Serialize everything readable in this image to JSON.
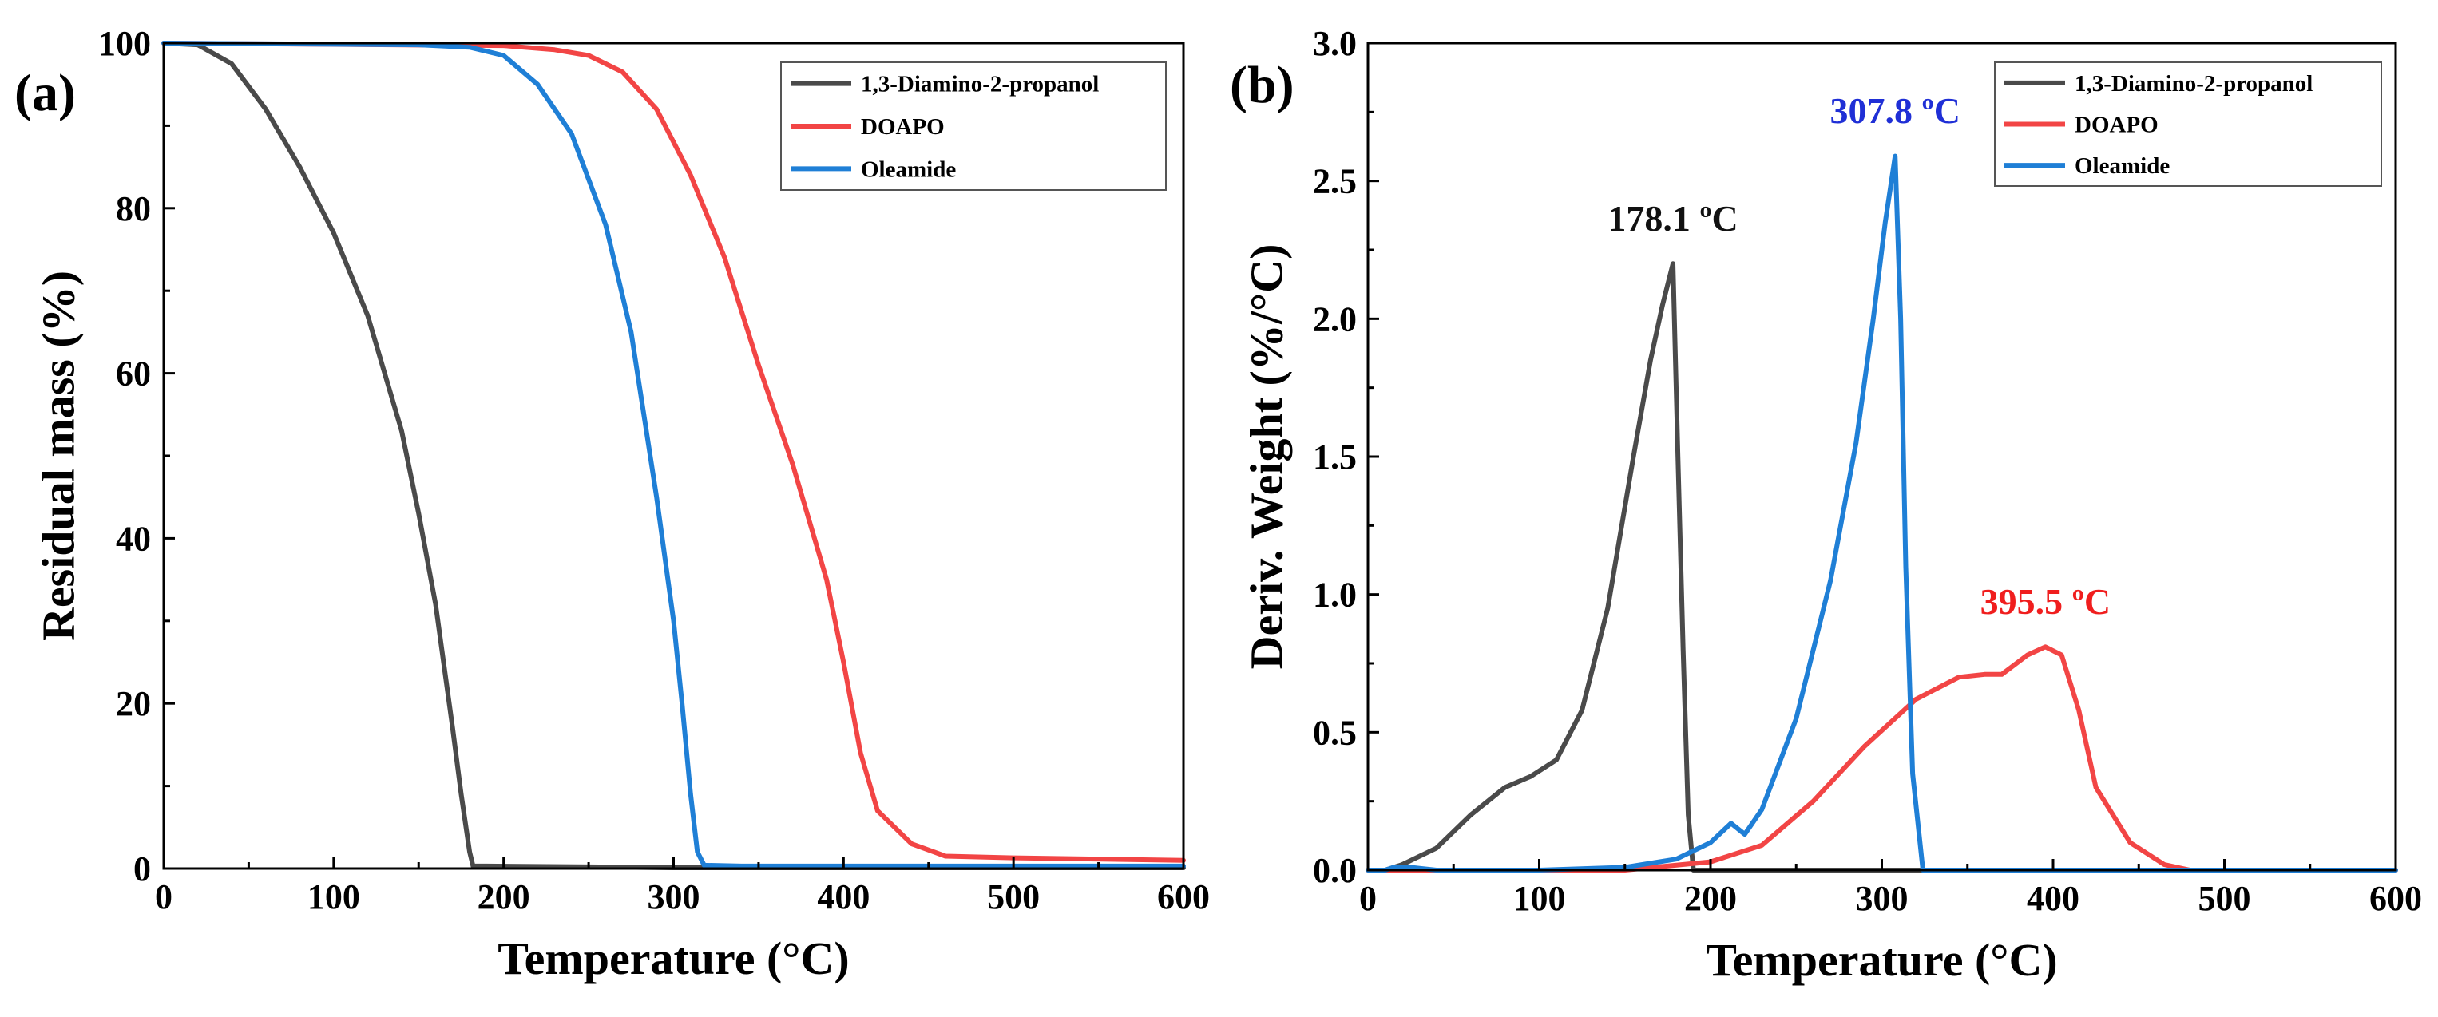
{
  "chart_data": [
    {
      "panel_label": "(a)",
      "type": "line",
      "xlabel": "Temperature (°C)",
      "ylabel": "Residual mass (%)",
      "xlim": [
        0,
        600
      ],
      "ylim": [
        0,
        100
      ],
      "xticks": [
        0,
        100,
        200,
        300,
        400,
        500,
        600
      ],
      "yticks": [
        0,
        20,
        40,
        60,
        80,
        100
      ],
      "legend_position": "top-right",
      "series": [
        {
          "name": "1,3-Diamino-2-propanol",
          "color": "#4a4a4a",
          "x": [
            0,
            20,
            40,
            60,
            80,
            100,
            120,
            140,
            150,
            160,
            170,
            175,
            180,
            182,
            190,
            250,
            300,
            600
          ],
          "y": [
            100,
            99.8,
            97.5,
            92,
            85,
            77,
            67,
            53,
            43,
            32,
            17,
            9,
            2,
            0.3,
            0.3,
            0.2,
            0.1,
            0.1
          ]
        },
        {
          "name": "DOAPO",
          "color": "#f24545",
          "x": [
            0,
            200,
            230,
            250,
            270,
            290,
            310,
            330,
            350,
            370,
            390,
            400,
            410,
            420,
            440,
            460,
            500,
            600
          ],
          "y": [
            100,
            99.7,
            99.2,
            98.5,
            96.5,
            92,
            84,
            74,
            61,
            49,
            35,
            25,
            14,
            7,
            3,
            1.5,
            1.3,
            1.0
          ]
        },
        {
          "name": "Oleamide",
          "color": "#1f7fd6",
          "x": [
            0,
            150,
            180,
            200,
            220,
            240,
            260,
            275,
            290,
            300,
            305,
            310,
            314,
            318,
            340,
            400,
            600
          ],
          "y": [
            100,
            99.8,
            99.5,
            98.5,
            95,
            89,
            78,
            65,
            45,
            30,
            20,
            9,
            2,
            0.4,
            0.3,
            0.3,
            0.3
          ]
        }
      ]
    },
    {
      "panel_label": "(b)",
      "type": "line",
      "xlabel": "Temperature (°C)",
      "ylabel": "Deriv. Weight (%/°C)",
      "xlim": [
        0,
        600
      ],
      "ylim": [
        0,
        3.0
      ],
      "xticks": [
        0,
        100,
        200,
        300,
        400,
        500,
        600
      ],
      "yticks": [
        0.0,
        0.5,
        1.0,
        1.5,
        2.0,
        2.5,
        3.0
      ],
      "legend_position": "top-right",
      "series": [
        {
          "name": "1,3-Diamino-2-propanol",
          "color": "#4a4a4a",
          "x": [
            10,
            20,
            40,
            60,
            80,
            95,
            110,
            125,
            140,
            155,
            165,
            172,
            178.1,
            181,
            184,
            187,
            190,
            220,
            600
          ],
          "y": [
            0,
            0.02,
            0.08,
            0.2,
            0.3,
            0.34,
            0.4,
            0.58,
            0.95,
            1.5,
            1.85,
            2.05,
            2.2,
            1.5,
            0.8,
            0.2,
            0.0,
            0.0,
            0.0
          ]
        },
        {
          "name": "DOAPO",
          "color": "#f24545",
          "x": [
            0,
            150,
            200,
            230,
            260,
            290,
            320,
            345,
            360,
            370,
            385,
            395.5,
            405,
            415,
            425,
            445,
            465,
            480,
            600
          ],
          "y": [
            0,
            0.0,
            0.03,
            0.09,
            0.25,
            0.45,
            0.62,
            0.7,
            0.71,
            0.71,
            0.78,
            0.81,
            0.78,
            0.58,
            0.3,
            0.1,
            0.02,
            0.0,
            0.0
          ]
        },
        {
          "name": "Oleamide",
          "color": "#1f7fd6",
          "x": [
            0,
            10,
            15,
            25,
            40,
            100,
            150,
            180,
            200,
            212,
            220,
            230,
            250,
            270,
            285,
            295,
            302,
            307.8,
            311,
            314,
            318,
            324,
            600
          ],
          "y": [
            0,
            0.0,
            0.01,
            0.01,
            0.0,
            0.0,
            0.01,
            0.04,
            0.1,
            0.17,
            0.13,
            0.22,
            0.55,
            1.05,
            1.55,
            2.0,
            2.35,
            2.59,
            2.0,
            1.1,
            0.35,
            0.0,
            0.0
          ]
        }
      ],
      "annotations": [
        {
          "text": "178.1 ºC",
          "x": 178.1,
          "y": 2.32,
          "color": "#111111"
        },
        {
          "text": "307.8 ºC",
          "x": 307.8,
          "y": 2.71,
          "color": "#1f2fd6"
        },
        {
          "text": "395.5 ºC",
          "x": 395.5,
          "y": 0.93,
          "color": "#f01e1e"
        }
      ]
    }
  ]
}
